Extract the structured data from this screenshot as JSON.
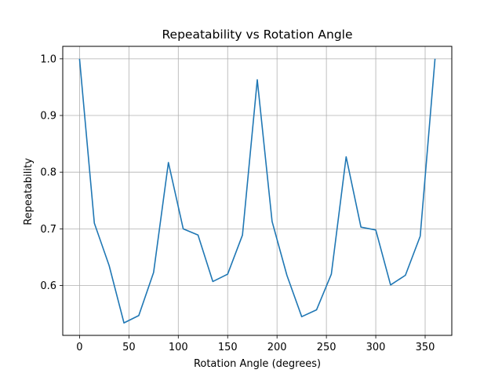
{
  "chart_data": {
    "type": "line",
    "title": "Repeatability vs Rotation Angle",
    "xlabel": "Rotation Angle (degrees)",
    "ylabel": "Repeatability",
    "xlim": [
      -17,
      377
    ],
    "ylim": [
      0.512,
      1.022
    ],
    "xticks": [
      0,
      50,
      100,
      150,
      200,
      250,
      300,
      350
    ],
    "yticks": [
      0.6,
      0.7,
      0.8,
      0.9,
      1.0
    ],
    "ytick_labels": [
      "0.6",
      "0.7",
      "0.8",
      "0.9",
      "1.0"
    ],
    "grid": true,
    "line_color": "#1f77b4",
    "series": [
      {
        "x": [
          0,
          15,
          30,
          45,
          60,
          75,
          90,
          105,
          120,
          135,
          150,
          165,
          180,
          195,
          210,
          225,
          240,
          255,
          270,
          285,
          300,
          315,
          330,
          345,
          360
        ],
        "values": [
          1.0,
          0.71,
          0.635,
          0.534,
          0.547,
          0.623,
          0.817,
          0.7,
          0.689,
          0.607,
          0.62,
          0.689,
          0.963,
          0.713,
          0.618,
          0.545,
          0.557,
          0.62,
          0.827,
          0.703,
          0.698,
          0.601,
          0.618,
          0.687,
          1.0
        ]
      }
    ]
  }
}
